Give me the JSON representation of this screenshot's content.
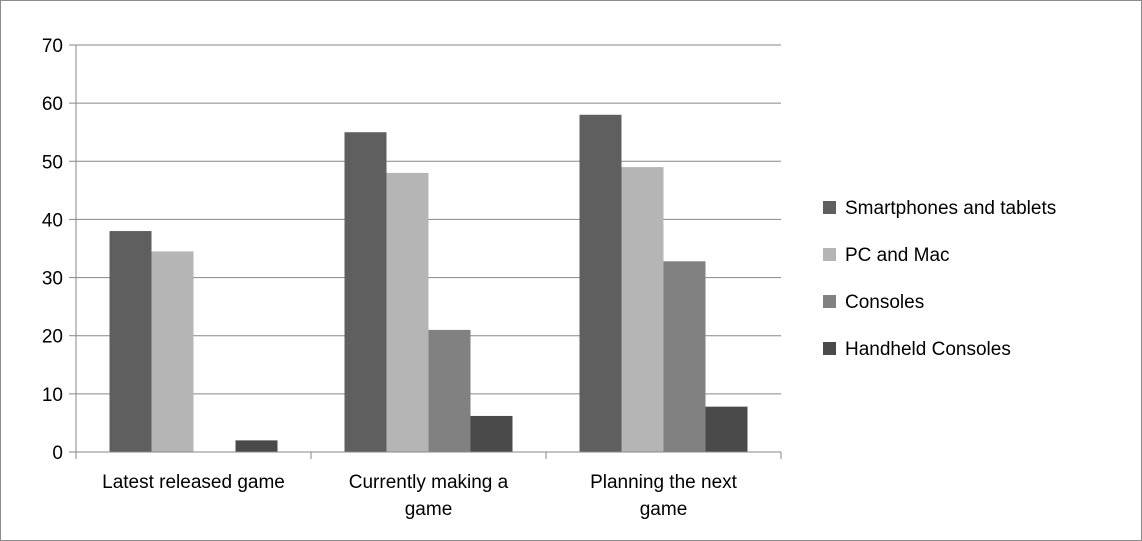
{
  "chart_data": {
    "type": "bar",
    "categories": [
      [
        "Latest released game"
      ],
      [
        "Currently making a",
        "game"
      ],
      [
        "Planning the next",
        "game"
      ]
    ],
    "series": [
      {
        "name": "Smartphones and tablets",
        "color": "#5f5f5f",
        "values": [
          38,
          55,
          58
        ]
      },
      {
        "name": "PC and Mac",
        "color": "#b5b5b5",
        "values": [
          34.5,
          48,
          49
        ]
      },
      {
        "name": "Consoles",
        "color": "#818181",
        "values": [
          0,
          21,
          32.8
        ]
      },
      {
        "name": "Handheld Consoles",
        "color": "#4a4a4a",
        "values": [
          2,
          6.2,
          7.8
        ]
      }
    ],
    "ylim": [
      0,
      70
    ],
    "yticks": [
      0,
      10,
      20,
      30,
      40,
      50,
      60,
      70
    ],
    "grid": true,
    "legend_position": "right",
    "title": "",
    "xlabel": "",
    "ylabel": ""
  }
}
